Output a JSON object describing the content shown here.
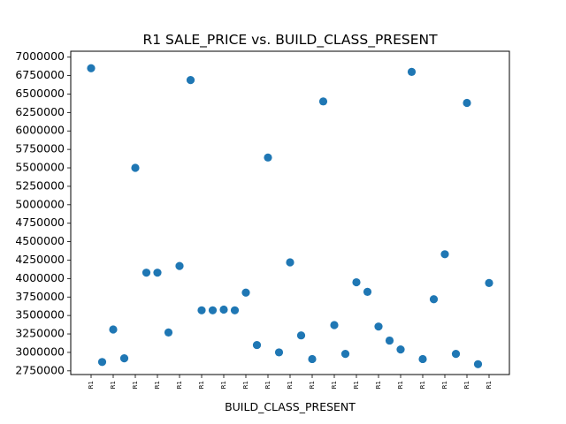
{
  "chart_data": {
    "type": "scatter",
    "title": "R1 SALE_PRICE vs. BUILD_CLASS_PRESENT",
    "xlabel": "BUILD_CLASS_PRESENT",
    "ylabel": "",
    "x_tick_label": "R1",
    "ylim": [
      2700000,
      7080000
    ],
    "y_ticks": [
      2750000,
      3000000,
      3250000,
      3500000,
      3750000,
      4000000,
      4250000,
      4500000,
      4750000,
      5000000,
      5250000,
      5500000,
      5750000,
      6000000,
      6250000,
      6500000,
      6750000,
      7000000
    ],
    "y_tick_labels": [
      "2750000",
      "3000000",
      "3250000",
      "3500000",
      "3750000",
      "4000000",
      "4250000",
      "4500000",
      "4750000",
      "5000000",
      "5250000",
      "5500000",
      "5750000",
      "6000000",
      "6250000",
      "6500000",
      "6750000",
      "7000000"
    ],
    "grid": false,
    "color": "#1f77b4",
    "values": [
      6850000,
      2870000,
      3310000,
      2920000,
      5500000,
      4080000,
      4080000,
      3270000,
      4170000,
      6690000,
      3570000,
      3570000,
      3580000,
      3570000,
      3810000,
      3100000,
      5640000,
      3000000,
      4220000,
      3230000,
      2910000,
      6400000,
      3370000,
      2980000,
      3950000,
      3820000,
      3350000,
      3160000,
      3040000,
      6800000,
      2910000,
      3720000,
      4330000,
      2980000,
      6380000,
      2840000,
      3940000
    ]
  }
}
